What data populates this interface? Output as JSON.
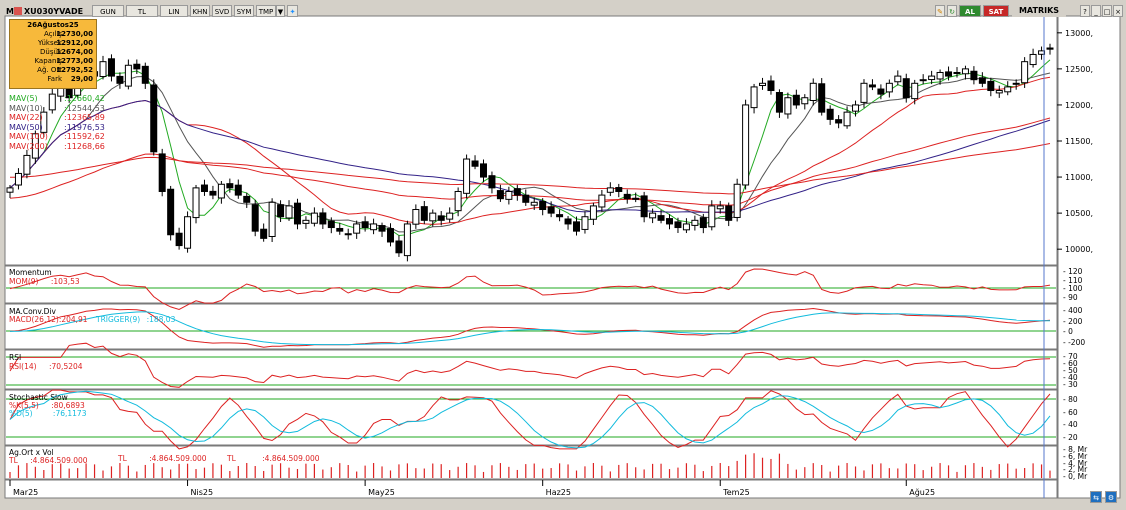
{
  "window": {
    "symbol": "XU030YVADE",
    "period": "GUN",
    "currency": "TL",
    "scale": "LIN",
    "buttons": [
      "KHN",
      "SVD",
      "SYM",
      "TMP"
    ],
    "buy_label": "AL",
    "sell_label": "SAT",
    "brand": "MATRIKS"
  },
  "ohlc": {
    "date": "26Ağustos25",
    "rows": [
      {
        "label": "Açılış",
        "value": "12730,00"
      },
      {
        "label": "Yüksek",
        "value": "12912,00"
      },
      {
        "label": "Düşük",
        "value": "12674,00"
      },
      {
        "label": "Kapanış",
        "value": "12773,00"
      },
      {
        "label": "Ağ. Ort",
        "value": "12792,52"
      },
      {
        "label": "Fark",
        "value": "29,00"
      }
    ]
  },
  "mav_legend": [
    {
      "label": "MAV(5)",
      "value": ":12660,42",
      "color": "#22aa22"
    },
    {
      "label": "MAV(10)",
      "value": ":12544,53",
      "color": "#555555"
    },
    {
      "label": "MAV(22)",
      "value": ":12365,89",
      "color": "#dd2222"
    },
    {
      "label": "MAV(50)",
      "value": ":11976,53",
      "color": "#332288"
    },
    {
      "label": "MAV(100)",
      "value": ":11592,62",
      "color": "#dd2222"
    },
    {
      "label": "MAV(200)",
      "value": ":11268,66",
      "color": "#dd2222"
    }
  ],
  "panels": {
    "momentum": {
      "title": "Momentum",
      "label": "MOM(9)",
      "value": ":103,53",
      "ticks": [
        "120",
        "110",
        "100",
        "90"
      ]
    },
    "macd": {
      "title": "MA.Conv.Div",
      "label": "MACD(26,12)",
      "value": ":204,91",
      "trigger_label": "TRIGGER(9)",
      "trigger_value": ":188,03",
      "ticks": [
        "400",
        "200",
        "0",
        "-200"
      ]
    },
    "rsi": {
      "title": "RSI",
      "label": "RSI(14)",
      "value": ":70,5204",
      "ticks": [
        "70",
        "60",
        "50",
        "40",
        "30"
      ]
    },
    "stoch": {
      "title": "Stochastic Slow",
      "k_label": "%K(5,5)",
      "k_value": ":80,6893",
      "d_label": "%D(5)",
      "d_value": ":76,1173",
      "ticks": [
        "80",
        "60",
        "40",
        "20"
      ]
    },
    "volume": {
      "title": "Ag.Ort x Vol",
      "labels": [
        {
          "a": "TL",
          "b": ":4.864.509.000"
        },
        {
          "a": "TL",
          "b": ":4.864.509.000"
        },
        {
          "a": "TL",
          "b": ":4.864.509.000"
        }
      ],
      "ticks": [
        "8, Mr",
        "6, Mr",
        "4, Mr",
        "2, Mr",
        "0, Mr"
      ]
    }
  },
  "chart_data": {
    "type": "candlestick",
    "yticks": [
      13000,
      12500,
      12000,
      11500,
      11000,
      10500,
      10000
    ],
    "ytick_labels": [
      "13000,",
      "12500,",
      "12000,",
      "11500,",
      "11000,",
      "10500,",
      "10000,"
    ],
    "ylim": [
      9850,
      13150
    ],
    "month_labels": [
      {
        "label": "Mar25",
        "index": 0
      },
      {
        "label": "Nis25",
        "index": 21
      },
      {
        "label": "May25",
        "index": 42
      },
      {
        "label": "Haz25",
        "index": 63
      },
      {
        "label": "Tem25",
        "index": 84
      },
      {
        "label": "Ağu25",
        "index": 106
      }
    ],
    "closes": [
      10850,
      11050,
      11300,
      11600,
      11900,
      12150,
      12250,
      12100,
      12300,
      12500,
      12400,
      12600,
      12400,
      12300,
      12550,
      12500,
      12300,
      11350,
      10800,
      10200,
      10050,
      10450,
      10850,
      10800,
      10750,
      10900,
      10850,
      10750,
      10650,
      10250,
      10150,
      10650,
      10450,
      10600,
      10350,
      10400,
      10500,
      10350,
      10300,
      10250,
      10200,
      10350,
      10300,
      10350,
      10250,
      10100,
      9950,
      10350,
      10550,
      10400,
      10500,
      10400,
      10500,
      10800,
      11250,
      11150,
      11000,
      10850,
      10700,
      10800,
      10750,
      10650,
      10650,
      10550,
      10500,
      10450,
      10350,
      10250,
      10450,
      10600,
      10750,
      10850,
      10800,
      10700,
      10700,
      10450,
      10500,
      10400,
      10350,
      10300,
      10350,
      10400,
      10300,
      10600,
      10600,
      10400,
      10900,
      12000,
      12250,
      12300,
      12200,
      11900,
      12100,
      12000,
      12100,
      12300,
      11900,
      11800,
      11750,
      11900,
      12000,
      12300,
      12250,
      12150,
      12300,
      12400,
      12100,
      12300,
      12350,
      12400,
      12450,
      12400,
      12450,
      12500,
      12350,
      12300,
      12200,
      12200,
      12250,
      12300,
      12600,
      12700,
      12750,
      12773
    ]
  }
}
